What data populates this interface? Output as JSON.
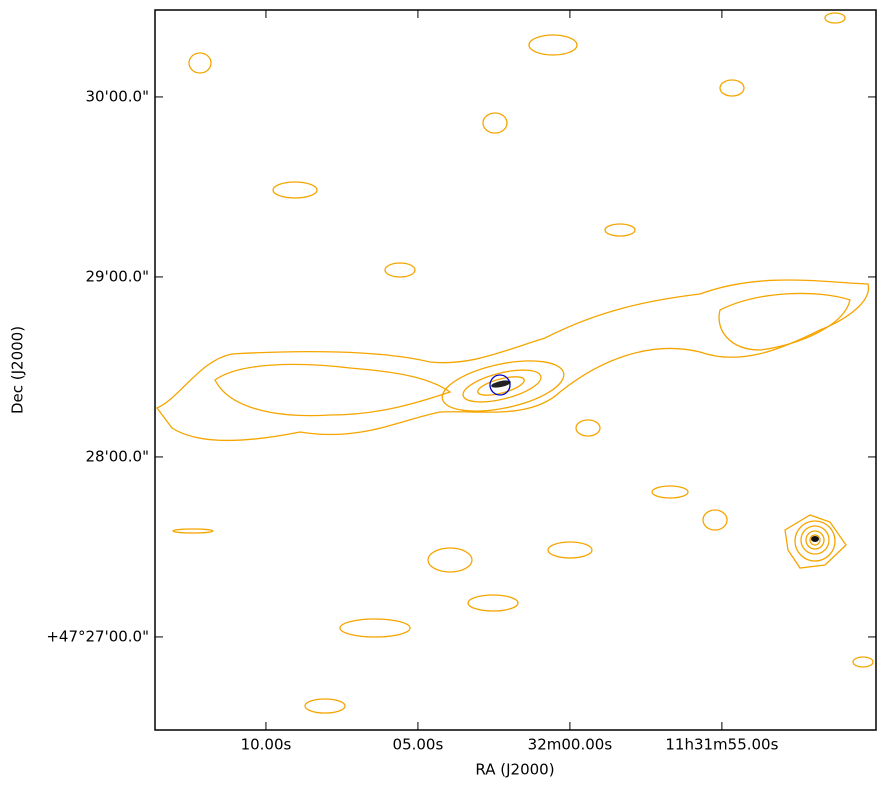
{
  "chart_data": {
    "type": "image",
    "xlabel": "RA (J2000)",
    "ylabel": "Dec (J2000)",
    "xlim": [
      73.65,
      49.93
    ],
    "xticks": [
      {
        "value": 70,
        "label": "10.00s"
      },
      {
        "value": 65,
        "label": "05.00s"
      },
      {
        "value": 60,
        "label": "32m00.00s"
      },
      {
        "value": 55,
        "label": "11h31m55.00s"
      }
    ],
    "ylim": [
      26.483,
      30.483
    ],
    "yticks": [
      {
        "value": 30,
        "label": "30'00.0\""
      },
      {
        "value": 29,
        "label": "29'00.0\""
      },
      {
        "value": 28,
        "label": "28'00.0\""
      },
      {
        "value": 27,
        "label": "+47°27'00.0\""
      }
    ]
  }
}
